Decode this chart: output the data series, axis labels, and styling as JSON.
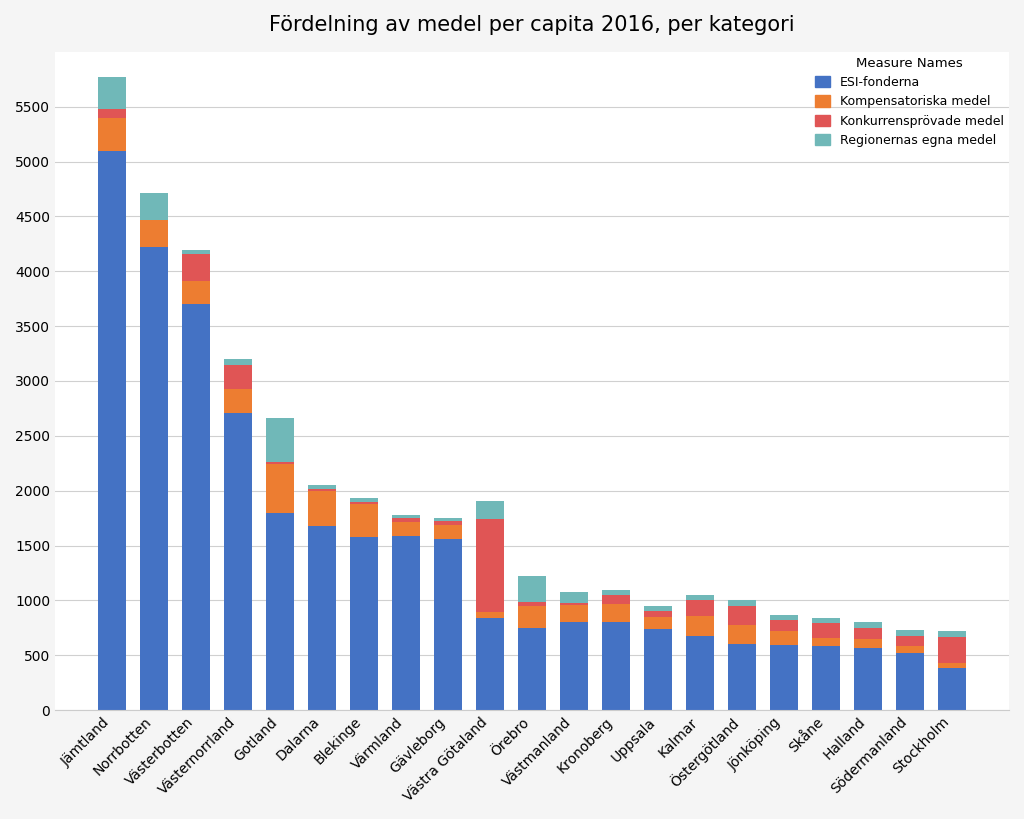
{
  "title": "Fördelning av medel per capita 2016, per kategori",
  "categories": [
    "Jämtland",
    "Norrbotten",
    "Västerbotten",
    "Västernorrland",
    "Gotland",
    "Dalarna",
    "Blekinge",
    "Värmland",
    "Gävleborg",
    "Västra Götaland",
    "Örebro",
    "Västmanland",
    "Kronoberg",
    "Uppsala",
    "Kalmar",
    "Östergötland",
    "Jönköping",
    "Skåne",
    "Halland",
    "Södermanland",
    "Stockholm"
  ],
  "esi_fonderna": [
    5100,
    4220,
    3700,
    2710,
    1800,
    1680,
    1580,
    1590,
    1560,
    840,
    750,
    800,
    800,
    740,
    680,
    600,
    590,
    580,
    570,
    520,
    380
  ],
  "kompensatoriska": [
    300,
    250,
    210,
    220,
    440,
    320,
    300,
    125,
    125,
    50,
    200,
    160,
    170,
    110,
    180,
    180,
    130,
    80,
    80,
    60,
    50
  ],
  "konkurrensprovade": [
    80,
    0,
    250,
    220,
    20,
    20,
    20,
    35,
    35,
    850,
    40,
    20,
    75,
    50,
    140,
    170,
    100,
    130,
    100,
    100,
    240
  ],
  "regionernas_egna": [
    290,
    240,
    30,
    50,
    400,
    30,
    30,
    30,
    30,
    170,
    230,
    100,
    50,
    50,
    50,
    50,
    50,
    50,
    50,
    50,
    50
  ],
  "colors": {
    "esi_fonderna": "#4472c4",
    "kompensatoriska": "#ed7d31",
    "konkurrensprovade": "#e05555",
    "regionernas_egna": "#70b8b8"
  },
  "legend_labels": [
    "ESI-fonderna",
    "Kompensatoriska medel",
    "Konkurrensprövade medel",
    "Regionernas egna medel"
  ],
  "legend_title": "Measure Names",
  "ylim": [
    0,
    6000
  ],
  "yticks": [
    0,
    500,
    1000,
    1500,
    2000,
    2500,
    3000,
    3500,
    4000,
    4500,
    5000,
    5500
  ],
  "background_color": "#f5f5f5",
  "plot_bg_color": "#ffffff"
}
